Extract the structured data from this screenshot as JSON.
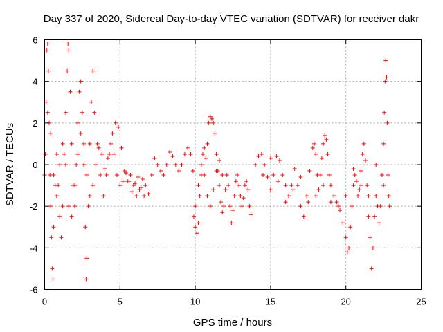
{
  "chart_data": {
    "type": "scatter",
    "title": "Day 337 of 2020, Sidereal Day-to-day VTEC variation (SDTVAR) for receiver dakr",
    "xlabel": "GPS time / hours",
    "ylabel": "SDTVAR / TECUs",
    "xlim": [
      0,
      25
    ],
    "ylim": [
      -6,
      6
    ],
    "xticks": [
      0,
      5,
      10,
      15,
      20,
      25
    ],
    "yticks": [
      -6,
      -4,
      -2,
      0,
      2,
      4,
      6
    ],
    "grid": true,
    "marker": "+",
    "color": "#ff0000",
    "series": [
      {
        "name": "SDTVAR",
        "points": [
          [
            0.0,
            -0.5
          ],
          [
            0.05,
            0.5
          ],
          [
            0.1,
            3.0
          ],
          [
            0.15,
            5.5
          ],
          [
            0.2,
            5.8
          ],
          [
            0.25,
            4.5
          ],
          [
            0.3,
            2.0
          ],
          [
            0.35,
            -0.5
          ],
          [
            0.4,
            -2.0
          ],
          [
            0.45,
            -3.5
          ],
          [
            0.5,
            -5.0
          ],
          [
            0.55,
            -5.5
          ],
          [
            0.6,
            -3.0
          ],
          [
            0.7,
            -1.0
          ],
          [
            0.8,
            0.5
          ],
          [
            0.9,
            -1.0
          ],
          [
            1.0,
            -2.5
          ],
          [
            1.1,
            -3.5
          ],
          [
            1.2,
            -2.0
          ],
          [
            1.3,
            0.5
          ],
          [
            1.4,
            2.5
          ],
          [
            1.5,
            4.5
          ],
          [
            1.55,
            5.8
          ],
          [
            1.6,
            5.5
          ],
          [
            1.7,
            3.5
          ],
          [
            1.8,
            1.0
          ],
          [
            1.9,
            -1.0
          ],
          [
            2.0,
            -2.0
          ],
          [
            2.1,
            0.0
          ],
          [
            2.2,
            2.0
          ],
          [
            2.3,
            3.5
          ],
          [
            2.4,
            4.0
          ],
          [
            2.5,
            2.5
          ],
          [
            2.6,
            0.0
          ],
          [
            2.7,
            -3.0
          ],
          [
            2.75,
            -5.5
          ],
          [
            2.8,
            -4.5
          ],
          [
            2.9,
            -2.0
          ],
          [
            3.0,
            1.0
          ],
          [
            3.1,
            3.0
          ],
          [
            3.2,
            4.5
          ],
          [
            3.3,
            2.5
          ],
          [
            3.5,
            1.0
          ],
          [
            3.7,
            -0.5
          ],
          [
            3.9,
            -1.5
          ],
          [
            4.1,
            -0.5
          ],
          [
            4.3,
            0.5
          ],
          [
            4.5,
            1.5
          ],
          [
            4.7,
            2.0
          ],
          [
            4.9,
            1.8
          ],
          [
            5.1,
            0.8
          ],
          [
            5.3,
            -0.3
          ],
          [
            5.5,
            -0.8
          ],
          [
            5.7,
            -0.5
          ],
          [
            5.9,
            -1.0
          ],
          [
            6.1,
            -1.5
          ],
          [
            6.3,
            -1.2
          ],
          [
            6.5,
            -0.7
          ],
          [
            6.7,
            -1.0
          ],
          [
            6.9,
            -1.4
          ],
          [
            7.1,
            -0.5
          ],
          [
            7.3,
            0.3
          ],
          [
            7.5,
            0.0
          ],
          [
            7.7,
            -0.3
          ],
          [
            7.9,
            -0.5
          ],
          [
            8.1,
            0.0
          ],
          [
            8.3,
            0.6
          ],
          [
            8.5,
            0.4
          ],
          [
            8.7,
            0.0
          ],
          [
            8.9,
            -0.3
          ],
          [
            9.1,
            0.0
          ],
          [
            9.3,
            0.5
          ],
          [
            9.5,
            0.8
          ],
          [
            9.7,
            0.5
          ],
          [
            9.85,
            -0.3
          ],
          [
            0.2,
            2.5
          ],
          [
            0.4,
            1.5
          ],
          [
            0.6,
            -0.5
          ],
          [
            0.8,
            -1.5
          ],
          [
            1.0,
            0.0
          ],
          [
            1.2,
            1.0
          ],
          [
            1.4,
            0.0
          ],
          [
            1.6,
            -2.0
          ],
          [
            1.8,
            -2.5
          ],
          [
            2.0,
            -1.0
          ],
          [
            2.2,
            0.5
          ],
          [
            2.4,
            1.5
          ],
          [
            2.6,
            1.0
          ],
          [
            2.8,
            -0.5
          ],
          [
            3.0,
            -1.5
          ],
          [
            3.2,
            -1.0
          ],
          [
            3.4,
            0.0
          ],
          [
            3.6,
            0.8
          ],
          [
            3.8,
            0.5
          ],
          [
            4.0,
            -0.2
          ],
          [
            4.2,
            0.3
          ],
          [
            4.4,
            1.0
          ],
          [
            4.6,
            0.5
          ],
          [
            4.8,
            -0.5
          ],
          [
            5.0,
            -1.0
          ],
          [
            5.2,
            -0.8
          ],
          [
            5.4,
            -0.4
          ],
          [
            5.6,
            -0.8
          ],
          [
            5.8,
            -1.3
          ],
          [
            6.0,
            -0.9
          ],
          [
            6.2,
            -0.6
          ],
          [
            6.4,
            -1.1
          ],
          [
            6.6,
            -1.5
          ],
          [
            9.9,
            -2.5
          ],
          [
            10.0,
            -3.0
          ],
          [
            10.1,
            -3.3
          ],
          [
            10.2,
            -2.8
          ],
          [
            10.3,
            -1.5
          ],
          [
            10.4,
            -0.5
          ],
          [
            10.5,
            0.5
          ],
          [
            10.6,
            0.8
          ],
          [
            10.7,
            0.3
          ],
          [
            10.8,
            1.0
          ],
          [
            10.9,
            2.0
          ],
          [
            11.0,
            2.3
          ],
          [
            11.1,
            2.2
          ],
          [
            11.2,
            2.0
          ],
          [
            11.3,
            1.5
          ],
          [
            11.4,
            0.5
          ],
          [
            11.5,
            -0.3
          ],
          [
            11.6,
            -1.0
          ],
          [
            11.7,
            -1.8
          ],
          [
            11.8,
            -2.3
          ],
          [
            11.9,
            -2.0
          ],
          [
            12.0,
            -1.2
          ],
          [
            12.1,
            -0.5
          ],
          [
            12.2,
            -1.0
          ],
          [
            12.3,
            -2.0
          ],
          [
            12.4,
            -2.8
          ],
          [
            12.5,
            -2.2
          ],
          [
            12.6,
            -1.5
          ],
          [
            12.7,
            -0.8
          ],
          [
            12.8,
            -0.5
          ],
          [
            12.9,
            -1.0
          ],
          [
            13.0,
            -1.5
          ],
          [
            13.1,
            -2.0
          ],
          [
            13.2,
            -1.6
          ],
          [
            13.3,
            -1.0
          ],
          [
            13.4,
            -0.8
          ],
          [
            13.5,
            -1.2
          ],
          [
            13.6,
            -2.0
          ],
          [
            13.7,
            -2.4
          ],
          [
            10.0,
            -2.0
          ],
          [
            10.2,
            -1.0
          ],
          [
            10.4,
            0.0
          ],
          [
            10.6,
            -0.5
          ],
          [
            10.8,
            -1.5
          ],
          [
            11.0,
            -2.0
          ],
          [
            11.2,
            -1.2
          ],
          [
            11.4,
            -0.3
          ],
          [
            11.6,
            0.2
          ],
          [
            11.8,
            -0.5
          ],
          [
            14.0,
            0.0
          ],
          [
            14.2,
            0.4
          ],
          [
            14.4,
            0.5
          ],
          [
            14.6,
            0.0
          ],
          [
            14.8,
            -0.6
          ],
          [
            15.0,
            -1.2
          ],
          [
            15.2,
            -0.5
          ],
          [
            15.4,
            0.4
          ],
          [
            15.6,
            0.2
          ],
          [
            15.8,
            -0.5
          ],
          [
            16.0,
            -1.0
          ],
          [
            16.2,
            -1.5
          ],
          [
            16.4,
            -1.0
          ],
          [
            16.6,
            -0.2
          ],
          [
            16.8,
            -1.0
          ],
          [
            17.0,
            -2.0
          ],
          [
            17.2,
            -2.5
          ],
          [
            17.4,
            -1.5
          ],
          [
            17.6,
            -0.3
          ],
          [
            17.8,
            0.8
          ],
          [
            17.9,
            1.0
          ],
          [
            18.0,
            0.5
          ],
          [
            18.1,
            -0.5
          ],
          [
            18.2,
            -1.2
          ],
          [
            18.3,
            -0.5
          ],
          [
            18.4,
            0.3
          ],
          [
            18.5,
            1.0
          ],
          [
            18.6,
            1.4
          ],
          [
            18.7,
            1.2
          ],
          [
            18.8,
            0.5
          ],
          [
            18.9,
            -0.5
          ],
          [
            19.0,
            -1.0
          ],
          [
            19.2,
            -1.5
          ],
          [
            19.4,
            -1.8
          ],
          [
            19.6,
            -2.2
          ],
          [
            19.8,
            -2.8
          ],
          [
            20.0,
            -3.5
          ],
          [
            20.1,
            -4.2
          ],
          [
            20.2,
            -4.0
          ],
          [
            20.3,
            -3.0
          ],
          [
            20.4,
            -2.0
          ],
          [
            20.5,
            -1.0
          ],
          [
            20.6,
            -0.5
          ],
          [
            20.7,
            -0.8
          ],
          [
            20.8,
            -1.5
          ],
          [
            20.9,
            -1.2
          ],
          [
            21.0,
            -0.3
          ],
          [
            21.1,
            0.5
          ],
          [
            21.2,
            1.0
          ],
          [
            21.3,
            0.2
          ],
          [
            21.4,
            -1.0
          ],
          [
            21.5,
            -2.5
          ],
          [
            21.6,
            -3.5
          ],
          [
            21.7,
            -5.0
          ],
          [
            21.8,
            -4.0
          ],
          [
            21.9,
            -2.5
          ],
          [
            22.0,
            -1.5
          ],
          [
            22.1,
            -2.0
          ],
          [
            22.2,
            -2.8
          ],
          [
            22.3,
            -2.0
          ],
          [
            22.4,
            -0.5
          ],
          [
            22.5,
            1.0
          ],
          [
            22.55,
            2.5
          ],
          [
            22.6,
            4.0
          ],
          [
            22.65,
            5.0
          ],
          [
            22.7,
            4.2
          ],
          [
            22.75,
            2.0
          ],
          [
            22.8,
            -0.5
          ],
          [
            22.85,
            -1.5
          ],
          [
            22.9,
            -2.0
          ],
          [
            14.5,
            -0.5
          ],
          [
            15.0,
            0.3
          ],
          [
            15.5,
            -0.8
          ],
          [
            16.0,
            -1.8
          ],
          [
            16.5,
            -1.2
          ],
          [
            17.0,
            -0.6
          ],
          [
            17.5,
            -1.8
          ],
          [
            18.0,
            -1.5
          ],
          [
            18.5,
            -1.0
          ],
          [
            19.0,
            -1.8
          ],
          [
            19.5,
            -2.0
          ],
          [
            20.0,
            -1.5
          ],
          [
            20.5,
            -0.2
          ],
          [
            21.0,
            -1.0
          ],
          [
            21.5,
            -1.5
          ],
          [
            22.0,
            0.0
          ],
          [
            22.5,
            -1.0
          ]
        ]
      }
    ]
  }
}
